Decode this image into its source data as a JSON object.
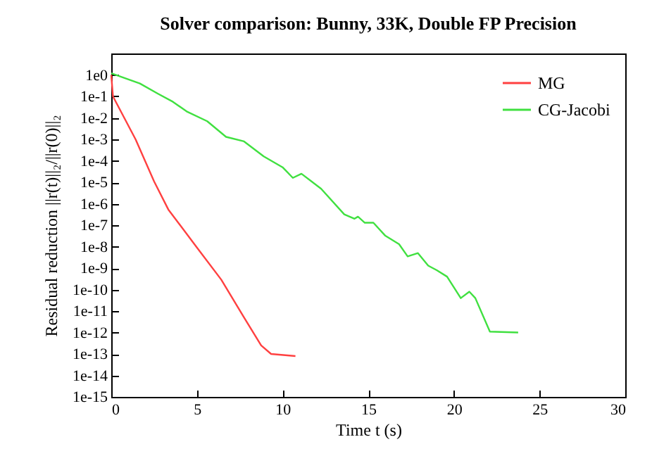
{
  "chart_data": {
    "type": "line",
    "title": "Solver comparison: Bunny, 33K, Double FP Precision",
    "xlabel": "Time t (s)",
    "ylabel": "Residual reduction ||r(t)||₂/||r(0)||₂",
    "log": "y",
    "grid": false,
    "legend": "top right",
    "marker": "none",
    "line_style": "solid",
    "xlim": [
      0,
      30
    ],
    "xticks": [
      0,
      5,
      10,
      15,
      20,
      25,
      30
    ],
    "ylim": [
      1e-15,
      10
    ],
    "yticks": [
      {
        "value": 1,
        "label": "1e0"
      },
      {
        "value": 0.1,
        "label": "1e-1"
      },
      {
        "value": 0.01,
        "label": "1e-2"
      },
      {
        "value": 0.001,
        "label": "1e-3"
      },
      {
        "value": 0.0001,
        "label": "1e-4"
      },
      {
        "value": 1e-05,
        "label": "1e-5"
      },
      {
        "value": 1e-06,
        "label": "1e-6"
      },
      {
        "value": 1e-07,
        "label": "1e-7"
      },
      {
        "value": 1e-08,
        "label": "1e-8"
      },
      {
        "value": 1e-09,
        "label": "1e-9"
      },
      {
        "value": 1e-10,
        "label": "1e-10"
      },
      {
        "value": 1e-11,
        "label": "1e-11"
      },
      {
        "value": 1e-12,
        "label": "1e-12"
      },
      {
        "value": 1e-13,
        "label": "1e-13"
      },
      {
        "value": 1e-14,
        "label": "1e-14"
      },
      {
        "value": 1e-15,
        "label": "1e-15"
      }
    ],
    "series": [
      {
        "name": "MG",
        "color": "#ff4040",
        "x": [
          0,
          0.1,
          1.42,
          2.5,
          3.33,
          5,
          6.42,
          7.75,
          8.75,
          9.33,
          10.75
        ],
        "values": [
          1,
          0.1,
          0.001,
          1.1e-05,
          5.4e-07,
          9.1e-09,
          2.9e-10,
          5e-12,
          2.5e-13,
          1e-13,
          8e-14
        ]
      },
      {
        "name": "CG-Jacobi",
        "color": "#40e040",
        "x": [
          0,
          1.67,
          2.75,
          3.6,
          4.4,
          5.6,
          6.7,
          7.75,
          8.9,
          10,
          10.6,
          11.1,
          12.25,
          13.6,
          14.2,
          14.4,
          14.8,
          15.3,
          16,
          16.8,
          17.3,
          17.9,
          18.5,
          19,
          19.6,
          20.4,
          20.9,
          21.25,
          22.1,
          23.75
        ],
        "values": [
          1.2,
          0.4,
          0.13,
          0.056,
          0.02,
          0.007,
          0.0013,
          0.0008,
          0.00016,
          5e-05,
          1.6e-05,
          2.5e-05,
          5e-06,
          3.2e-07,
          2e-07,
          2.5e-07,
          1.3e-07,
          1.3e-07,
          3.2e-08,
          1.3e-08,
          3.5e-09,
          5e-09,
          1.3e-09,
          8e-10,
          4e-10,
          4e-11,
          8e-11,
          4e-11,
          1.1e-12,
          1e-12
        ]
      }
    ]
  }
}
